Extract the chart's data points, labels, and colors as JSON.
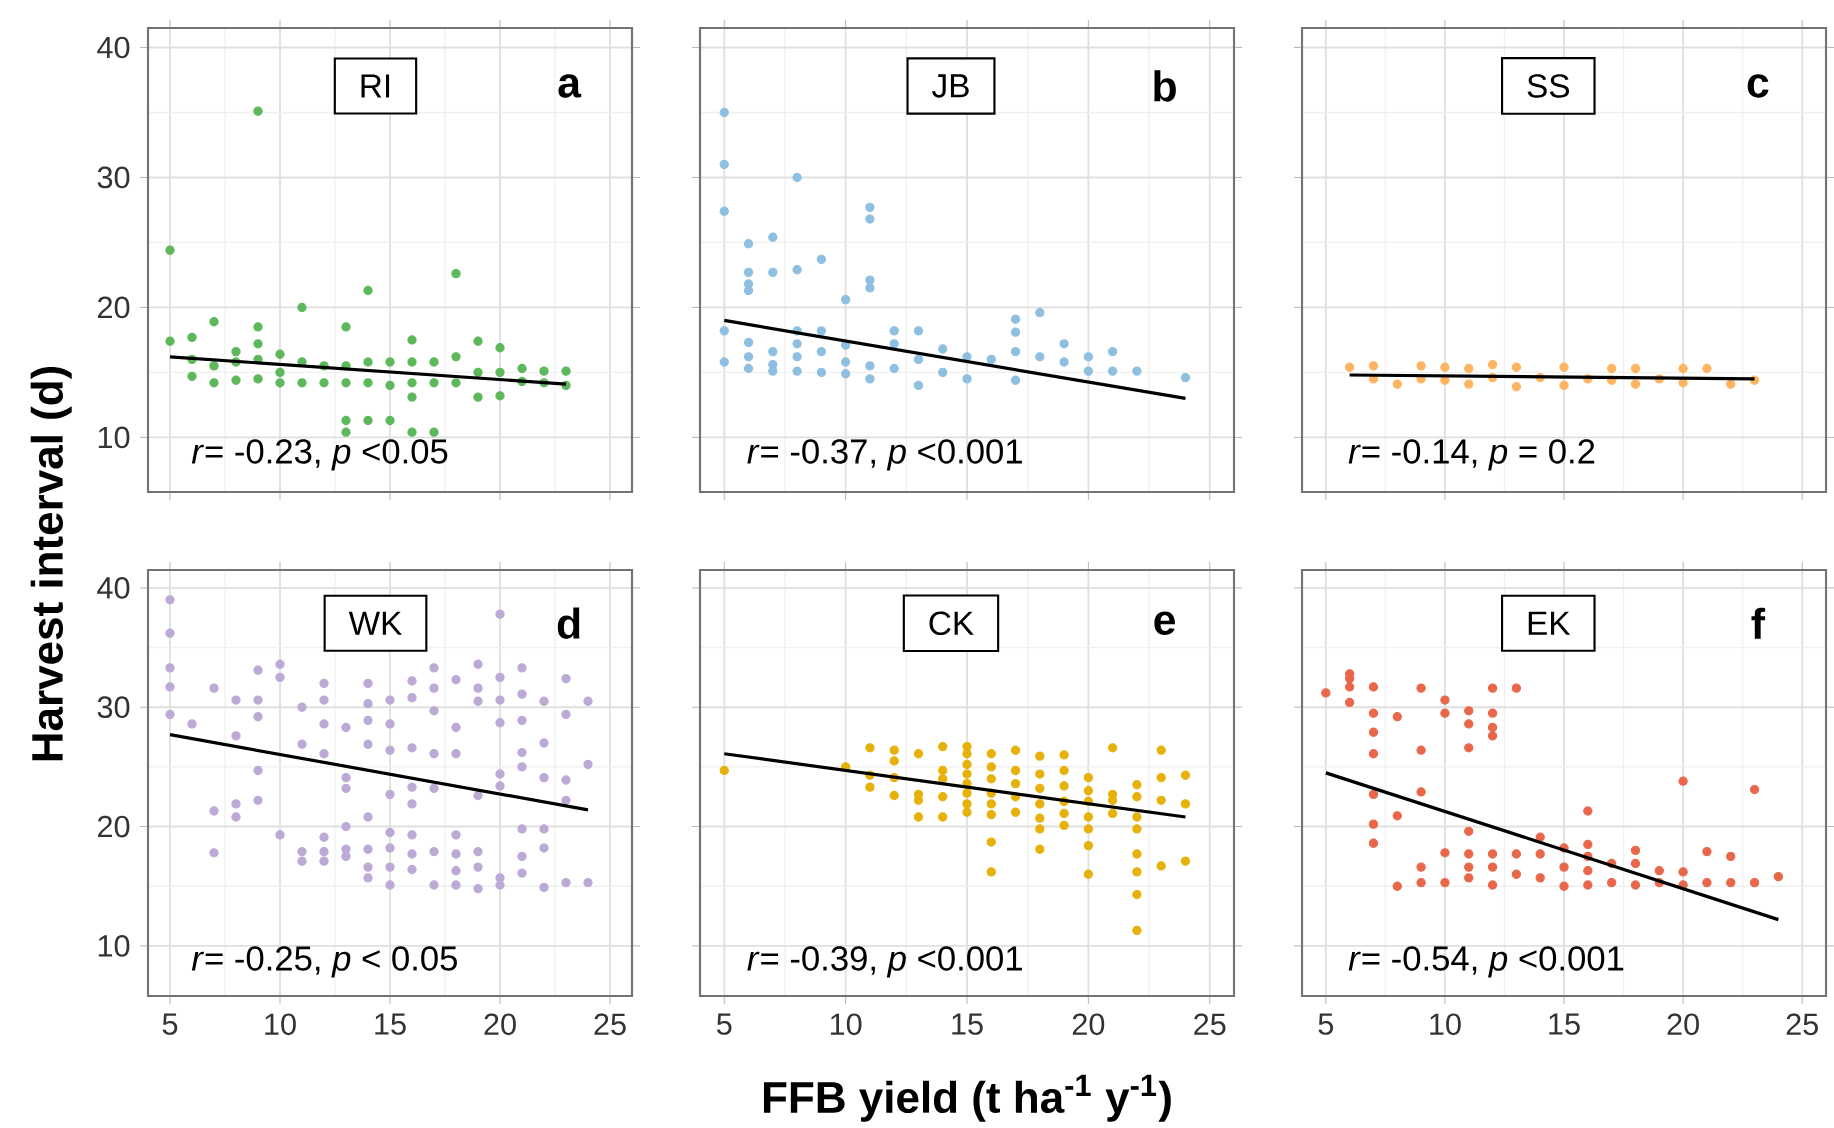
{
  "chart_data": [
    {
      "type": "scatter",
      "title": "RI",
      "ylabel": "Harvest interval (d)",
      "annotations": [
        "a",
        "*r*= -0.23, *p* <0.05"
      ],
      "xlim": [
        4,
        26
      ],
      "ylim": [
        5.8,
        41.5
      ],
      "xticks": [
        5,
        10,
        15,
        20,
        25
      ],
      "yticks": [
        10,
        20,
        30,
        40
      ],
      "grid": true,
      "tick_labels": "y",
      "series": [
        {
          "color": "#5db85b",
          "marker": "circle",
          "x": [
            5,
            5,
            6,
            6,
            6,
            7,
            7,
            7,
            8,
            8,
            8,
            9,
            9,
            9,
            9,
            9,
            10,
            10,
            10,
            11,
            11,
            11,
            12,
            12,
            13,
            13,
            13,
            13,
            13,
            14,
            14,
            14,
            14,
            15,
            15,
            15,
            16,
            16,
            16,
            16,
            16,
            17,
            17,
            17,
            18,
            18,
            18,
            19,
            19,
            19,
            20,
            20,
            20,
            21,
            21,
            22,
            22,
            23,
            23
          ],
          "values": [
            24.4,
            17.4,
            17.7,
            16,
            14.7,
            18.9,
            15.5,
            14.2,
            16.6,
            15.8,
            14.4,
            35.1,
            18.5,
            17.2,
            16,
            14.5,
            16.4,
            15,
            14.2,
            20,
            15.8,
            14.2,
            15.5,
            14.2,
            18.5,
            15.5,
            14.2,
            11.3,
            10.4,
            21.3,
            15.8,
            14.2,
            11.3,
            15.8,
            14,
            11.3,
            17.5,
            15.8,
            14.2,
            13.1,
            10.4,
            15.8,
            14.2,
            10.4,
            22.6,
            16.2,
            14.2,
            17.4,
            15,
            13.1,
            16.9,
            15,
            13.2,
            15.3,
            14.3,
            15.1,
            14.2,
            15.1,
            14
          ]
        },
        {
          "type": "line",
          "color": "#000000",
          "x": [
            5,
            23
          ],
          "values": [
            16.2,
            14.1
          ],
          "marker": "none"
        }
      ]
    },
    {
      "type": "scatter",
      "title": "JB",
      "annotations": [
        "b",
        "*r*= -0.37, *p* <0.001"
      ],
      "xlim": [
        4,
        26
      ],
      "ylim": [
        5.8,
        41.5
      ],
      "xticks": [
        5,
        10,
        15,
        20,
        25
      ],
      "yticks": [
        10,
        20,
        30,
        40
      ],
      "grid": true,
      "tick_labels": false,
      "series": [
        {
          "color": "#8fbfe0",
          "marker": "circle",
          "x": [
            5,
            5,
            5,
            5,
            5,
            6,
            6,
            6,
            6,
            6,
            6,
            6,
            7,
            7,
            7,
            7,
            7,
            8,
            8,
            8,
            8,
            8,
            8,
            9,
            9,
            9,
            9,
            10,
            10,
            10,
            10,
            11,
            11,
            11,
            11,
            11,
            11,
            12,
            12,
            12,
            13,
            13,
            13,
            14,
            14,
            15,
            15,
            16,
            17,
            17,
            17,
            17,
            18,
            18,
            19,
            19,
            20,
            20,
            21,
            21,
            22,
            24
          ],
          "values": [
            35,
            31,
            27.4,
            18.2,
            15.8,
            24.9,
            22.7,
            21.8,
            21.3,
            17.3,
            16.2,
            15.3,
            25.4,
            22.7,
            16.6,
            15.6,
            15.1,
            30,
            22.9,
            18.2,
            17.2,
            16.2,
            15.1,
            23.7,
            18.2,
            16.6,
            15,
            20.6,
            17.1,
            15.8,
            14.9,
            27.7,
            26.8,
            22.1,
            21.5,
            15.5,
            14.5,
            18.2,
            17.2,
            15.3,
            18.2,
            16,
            14,
            16.8,
            15,
            16.2,
            14.5,
            16,
            19.1,
            18.1,
            16.6,
            14.4,
            19.6,
            16.2,
            17.2,
            15.8,
            16.2,
            15.1,
            16.6,
            15.1,
            15.1,
            14.6
          ]
        },
        {
          "type": "line",
          "color": "#000000",
          "x": [
            5,
            24
          ],
          "values": [
            19,
            13
          ],
          "marker": "none"
        }
      ]
    },
    {
      "type": "scatter",
      "title": "SS",
      "annotations": [
        "c",
        "*r*= -0.14, *p* = 0.2"
      ],
      "xlim": [
        4,
        26
      ],
      "ylim": [
        5.8,
        41.5
      ],
      "xticks": [
        5,
        10,
        15,
        20,
        25
      ],
      "yticks": [
        10,
        20,
        30,
        40
      ],
      "grid": true,
      "tick_labels": false,
      "series": [
        {
          "color": "#fdb462",
          "marker": "circle",
          "x": [
            6,
            7,
            7,
            8,
            9,
            9,
            10,
            10,
            11,
            11,
            12,
            12,
            13,
            13,
            14,
            15,
            15,
            16,
            17,
            17,
            18,
            18,
            19,
            20,
            20,
            21,
            22,
            23
          ],
          "values": [
            15.4,
            15.5,
            14.5,
            14.1,
            15.5,
            14.5,
            15.4,
            14.4,
            15.3,
            14.1,
            15.6,
            14.6,
            15.4,
            13.9,
            14.6,
            15.4,
            14,
            14.5,
            15.3,
            14.4,
            15.3,
            14.1,
            14.5,
            15.3,
            14.2,
            15.3,
            14.1,
            14.4
          ]
        },
        {
          "type": "line",
          "color": "#000000",
          "x": [
            6,
            23
          ],
          "values": [
            14.8,
            14.5
          ],
          "marker": "none"
        }
      ]
    },
    {
      "type": "scatter",
      "title": "WK",
      "annotations": [
        "d",
        "*r*= -0.25, *p* < 0.05"
      ],
      "xlim": [
        4,
        26
      ],
      "ylim": [
        5.8,
        41.5
      ],
      "xticks": [
        5,
        10,
        15,
        20,
        25
      ],
      "yticks": [
        10,
        20,
        30,
        40
      ],
      "grid": true,
      "series": [
        {
          "color": "#bca9d6",
          "marker": "circle",
          "x": [
            5,
            5,
            5,
            5,
            5,
            6,
            7,
            7,
            7,
            8,
            8,
            8,
            8,
            9,
            9,
            9,
            9,
            9,
            10,
            10,
            10,
            11,
            11,
            11,
            11,
            12,
            12,
            12,
            12,
            12,
            12,
            12,
            13,
            13,
            13,
            13,
            13,
            13,
            14,
            14,
            14,
            14,
            14,
            14,
            14,
            14,
            15,
            15,
            15,
            15,
            15,
            15,
            15,
            15,
            16,
            16,
            16,
            16,
            16,
            16,
            16,
            16,
            17,
            17,
            17,
            17,
            17,
            17,
            17,
            18,
            18,
            18,
            18,
            18,
            18,
            18,
            19,
            19,
            19,
            19,
            19,
            19,
            19,
            20,
            20,
            20,
            20,
            20,
            20,
            20,
            20,
            21,
            21,
            21,
            21,
            21,
            21,
            21,
            21,
            22,
            22,
            22,
            22,
            22,
            22,
            23,
            23,
            23,
            23,
            23,
            24,
            24,
            24
          ],
          "values": [
            39,
            36.2,
            33.3,
            31.7,
            29.4,
            28.6,
            31.6,
            21.3,
            17.8,
            30.6,
            27.6,
            21.9,
            20.8,
            33.1,
            30.6,
            29.2,
            24.7,
            22.2,
            33.6,
            32.5,
            19.3,
            30,
            26.9,
            17.9,
            17.1,
            32,
            30.6,
            28.6,
            26.1,
            19.1,
            17.9,
            17.1,
            28.3,
            24.1,
            23.2,
            20,
            18.1,
            17.5,
            32,
            30.3,
            28.9,
            26.9,
            20.8,
            18.1,
            16.6,
            15.7,
            30.6,
            28.6,
            26.4,
            22.7,
            19.5,
            18.2,
            16.6,
            15.1,
            32.2,
            30.8,
            26.6,
            23.3,
            21.9,
            19.3,
            17.7,
            16.4,
            33.3,
            31.6,
            29.7,
            26.1,
            23.2,
            17.9,
            15.1,
            32.3,
            28.3,
            26.1,
            19.3,
            17.7,
            16.3,
            15.1,
            33.6,
            31.6,
            30.5,
            22.6,
            17.9,
            16.6,
            14.8,
            37.8,
            32.5,
            30.6,
            28.7,
            24.4,
            23.4,
            15.7,
            15.1,
            33.3,
            31.1,
            28.9,
            26.2,
            25,
            19.8,
            17.5,
            16.1,
            30.5,
            27,
            24.1,
            19.8,
            18.2,
            14.9,
            32.4,
            29.4,
            23.9,
            22.2,
            15.3,
            30.5,
            25.2,
            15.3
          ]
        },
        {
          "type": "line",
          "color": "#000000",
          "x": [
            5,
            24
          ],
          "values": [
            27.7,
            21.4
          ],
          "marker": "none"
        }
      ]
    },
    {
      "type": "scatter",
      "title": "CK",
      "xlabel": "FFB yield (t ha$^{-1}$ y$^{-1}$)",
      "annotations": [
        "e",
        "*r*= -0.39, *p* <0.001"
      ],
      "xlim": [
        4,
        26
      ],
      "ylim": [
        5.8,
        41.5
      ],
      "xticks": [
        5,
        10,
        15,
        20,
        25
      ],
      "yticks": [
        10,
        20,
        30,
        40
      ],
      "grid": true,
      "tick_labels": "x",
      "series": [
        {
          "color": "#e6b10a",
          "marker": "circle",
          "x": [
            5,
            10,
            11,
            11,
            11,
            12,
            12,
            12,
            12,
            13,
            13,
            13,
            13,
            14,
            14,
            14,
            14,
            14,
            15,
            15,
            15,
            15,
            15,
            15,
            15,
            15,
            16,
            16,
            16,
            16,
            16,
            16,
            16,
            16,
            17,
            17,
            17,
            17,
            17,
            18,
            18,
            18,
            18,
            18,
            18,
            18,
            19,
            19,
            19,
            19,
            19,
            19,
            20,
            20,
            20,
            20,
            20,
            20,
            20,
            21,
            21,
            21,
            21,
            22,
            22,
            22,
            22,
            22,
            22,
            22,
            22,
            23,
            23,
            23,
            23,
            24,
            24,
            24
          ],
          "values": [
            24.7,
            25,
            26.6,
            24.3,
            23.3,
            26.4,
            25.5,
            24.1,
            22.6,
            26.1,
            22.7,
            22.2,
            20.8,
            26.7,
            24.7,
            24,
            22.5,
            20.8,
            26.7,
            26.1,
            25.2,
            24.4,
            23.6,
            22.8,
            21.9,
            21.2,
            26.1,
            25,
            24,
            22.8,
            21.9,
            21,
            18.7,
            16.2,
            26.4,
            24.7,
            23.6,
            22.5,
            21.2,
            25.9,
            24.4,
            23.2,
            21.9,
            20.7,
            19.8,
            18.1,
            26,
            24.7,
            23.4,
            22.1,
            21.1,
            20.1,
            24.1,
            23,
            22.1,
            20.8,
            19.8,
            18.4,
            16,
            26.6,
            22.7,
            22.2,
            21.1,
            23.5,
            22.5,
            20.8,
            19.8,
            17.7,
            16.2,
            14.3,
            11.3,
            26.4,
            24.1,
            22.2,
            16.7,
            24.3,
            21.9,
            17.1
          ]
        },
        {
          "type": "line",
          "color": "#000000",
          "x": [
            5,
            24
          ],
          "values": [
            26.1,
            20.8
          ],
          "marker": "none"
        }
      ]
    },
    {
      "type": "scatter",
      "title": "EK",
      "annotations": [
        "f",
        "*r*= -0.54, *p* <0.001"
      ],
      "xlim": [
        4,
        26
      ],
      "ylim": [
        5.8,
        41.5
      ],
      "xticks": [
        5,
        10,
        15,
        20,
        25
      ],
      "yticks": [
        10,
        20,
        30,
        40
      ],
      "grid": true,
      "tick_labels": "x",
      "series": [
        {
          "color": "#e8674a",
          "marker": "circle",
          "x": [
            5,
            6,
            6,
            6,
            6,
            7,
            7,
            7,
            7,
            7,
            7,
            7,
            8,
            8,
            8,
            9,
            9,
            9,
            9,
            9,
            10,
            10,
            10,
            10,
            11,
            11,
            11,
            11,
            11,
            11,
            11,
            12,
            12,
            12,
            12,
            12,
            12,
            12,
            13,
            13,
            13,
            14,
            14,
            14,
            15,
            15,
            15,
            16,
            16,
            16,
            16,
            16,
            17,
            17,
            18,
            18,
            18,
            19,
            19,
            20,
            20,
            20,
            21,
            21,
            22,
            22,
            23,
            23,
            24
          ],
          "values": [
            31.2,
            32.8,
            32.4,
            31.7,
            30.4,
            31.7,
            29.5,
            27.9,
            26.1,
            22.7,
            20.2,
            18.6,
            29.2,
            20.9,
            15,
            31.6,
            26.4,
            22.9,
            16.6,
            15.3,
            30.6,
            29.5,
            17.8,
            15.3,
            29.7,
            28.6,
            26.6,
            19.6,
            17.7,
            16.6,
            15.7,
            31.6,
            29.5,
            28.3,
            27.6,
            17.7,
            16.6,
            15.1,
            31.6,
            17.7,
            16,
            19.1,
            17.7,
            15.7,
            18.2,
            16.6,
            15,
            21.3,
            18.5,
            17.5,
            16.3,
            15.1,
            16.9,
            15.3,
            18,
            16.9,
            15.1,
            16.3,
            15.3,
            23.8,
            16.2,
            15.1,
            17.9,
            15.3,
            17.5,
            15.3,
            23.1,
            15.3,
            15.8
          ]
        },
        {
          "type": "line",
          "color": "#000000",
          "x": [
            5,
            24
          ],
          "values": [
            24.5,
            12.2
          ],
          "marker": "none"
        }
      ]
    }
  ]
}
